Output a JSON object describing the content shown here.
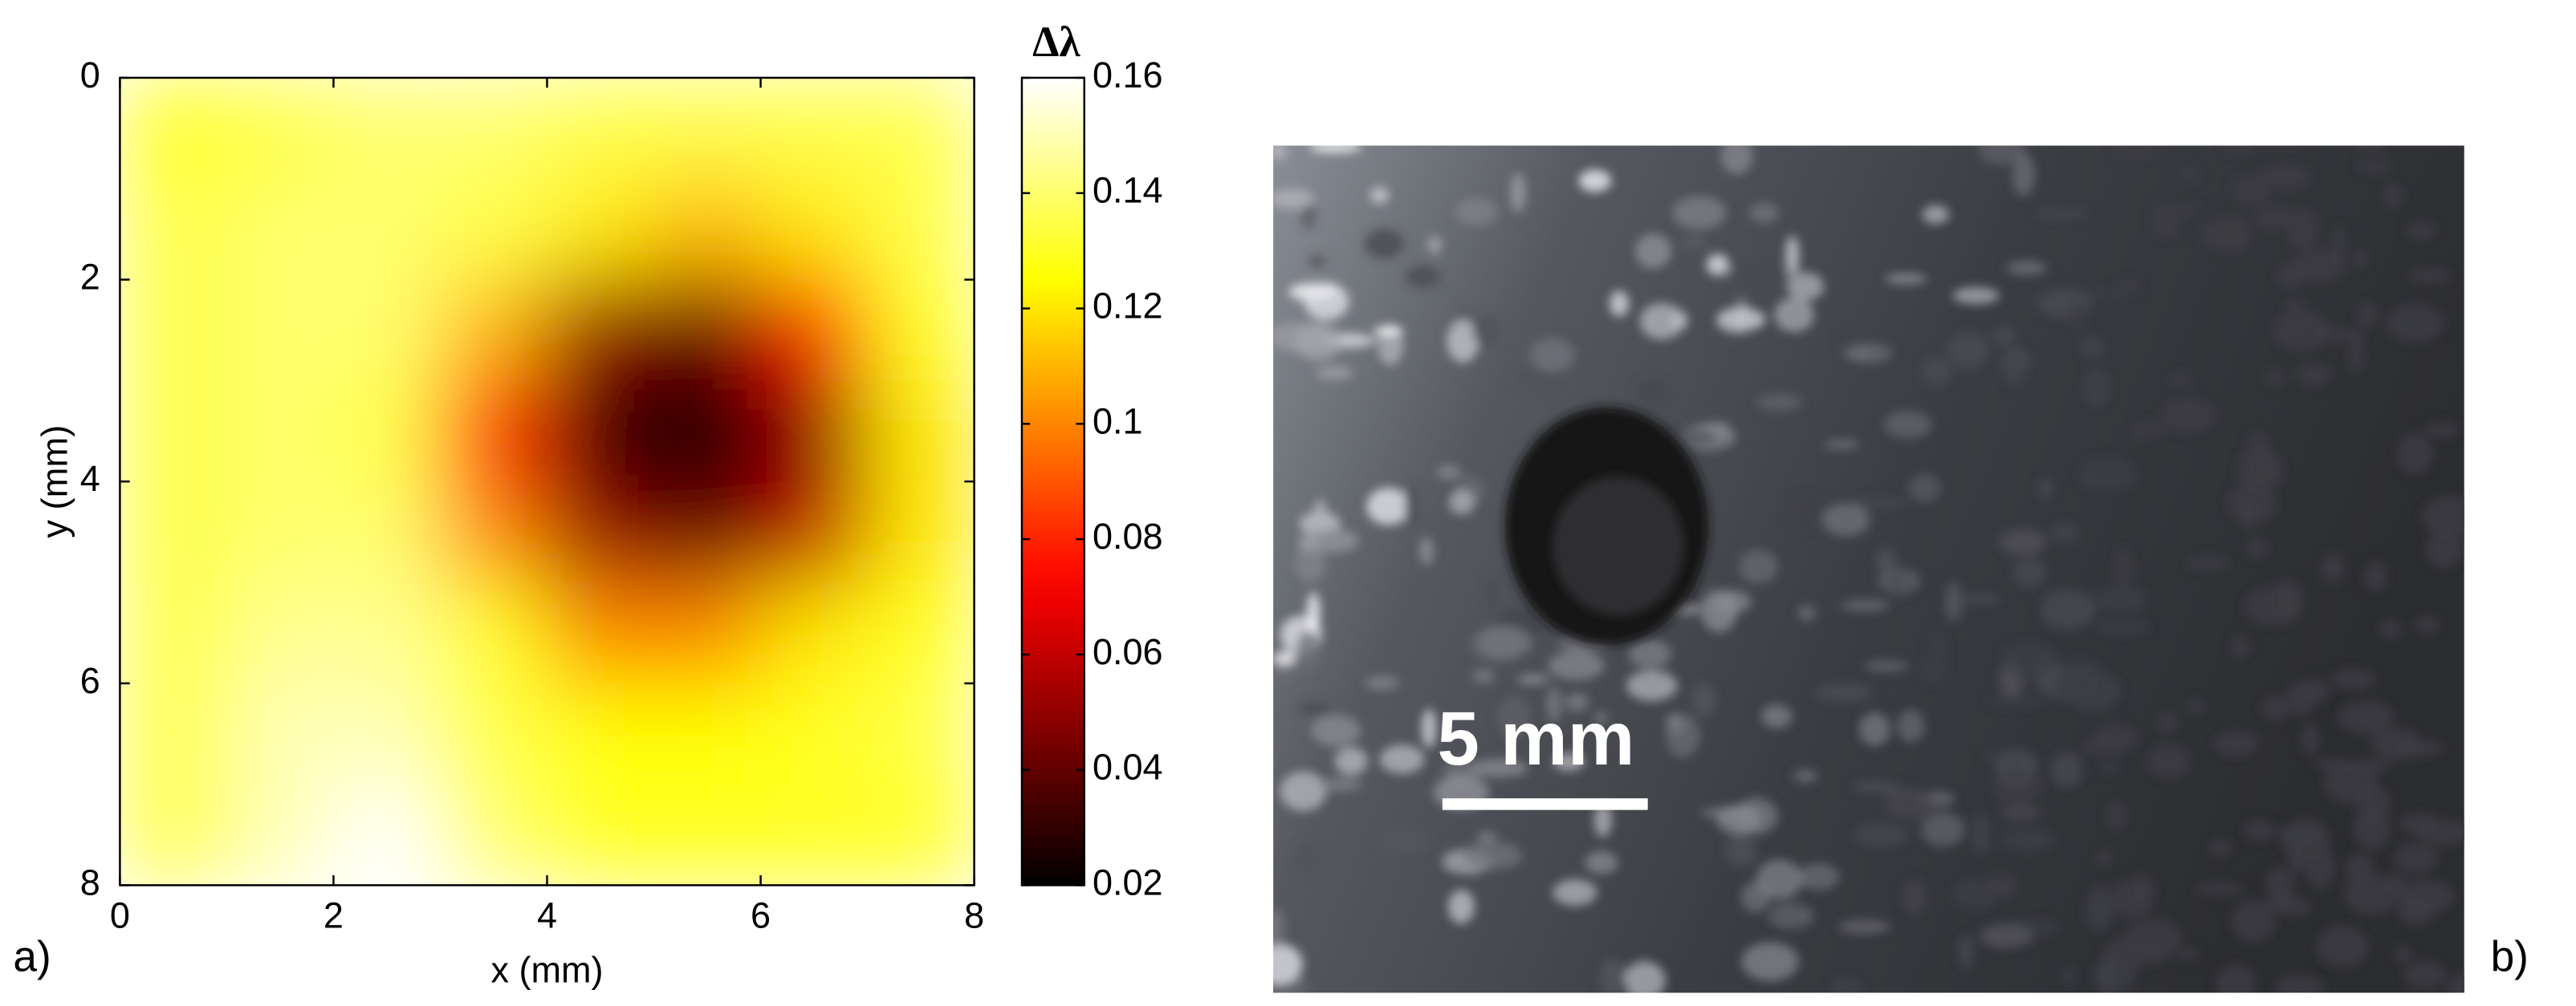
{
  "chart_data": {
    "type": "heatmap",
    "xlabel": "x (mm)",
    "ylabel": "y (mm)",
    "colorbar_title": "Δλ",
    "colormap": "hot",
    "y_inverted": true,
    "x": [
      0.5,
      1.5,
      2.5,
      3.5,
      4.5,
      5.5,
      6.5,
      7.5
    ],
    "y": [
      0.5,
      1.5,
      2.5,
      3.5,
      4.5,
      5.5,
      6.5,
      7.5
    ],
    "values": [
      [
        0.13,
        0.135,
        0.14,
        0.14,
        0.135,
        0.135,
        0.135,
        0.135
      ],
      [
        0.135,
        0.14,
        0.14,
        0.135,
        0.12,
        0.11,
        0.12,
        0.135
      ],
      [
        0.135,
        0.14,
        0.14,
        0.11,
        0.05,
        0.04,
        0.08,
        0.13
      ],
      [
        0.135,
        0.14,
        0.135,
        0.08,
        0.03,
        0.02,
        0.05,
        0.12
      ],
      [
        0.135,
        0.14,
        0.14,
        0.1,
        0.05,
        0.04,
        0.06,
        0.12
      ],
      [
        0.135,
        0.145,
        0.145,
        0.13,
        0.1,
        0.1,
        0.12,
        0.13
      ],
      [
        0.135,
        0.15,
        0.15,
        0.135,
        0.125,
        0.125,
        0.13,
        0.135
      ],
      [
        0.135,
        0.15,
        0.16,
        0.14,
        0.13,
        0.13,
        0.13,
        0.13
      ]
    ],
    "xlim": [
      0,
      8
    ],
    "ylim": [
      0,
      8
    ],
    "xticks": [
      0,
      2,
      4,
      6,
      8
    ],
    "yticks": [
      0,
      2,
      4,
      6,
      8
    ],
    "clim": [
      0.02,
      0.16
    ],
    "cticks": [
      0.02,
      0.04,
      0.06,
      0.08,
      0.1,
      0.12,
      0.14,
      0.16
    ]
  },
  "figure": {
    "panel_a": "a)",
    "panel_b": "b)",
    "scale_bar": "5 mm"
  }
}
